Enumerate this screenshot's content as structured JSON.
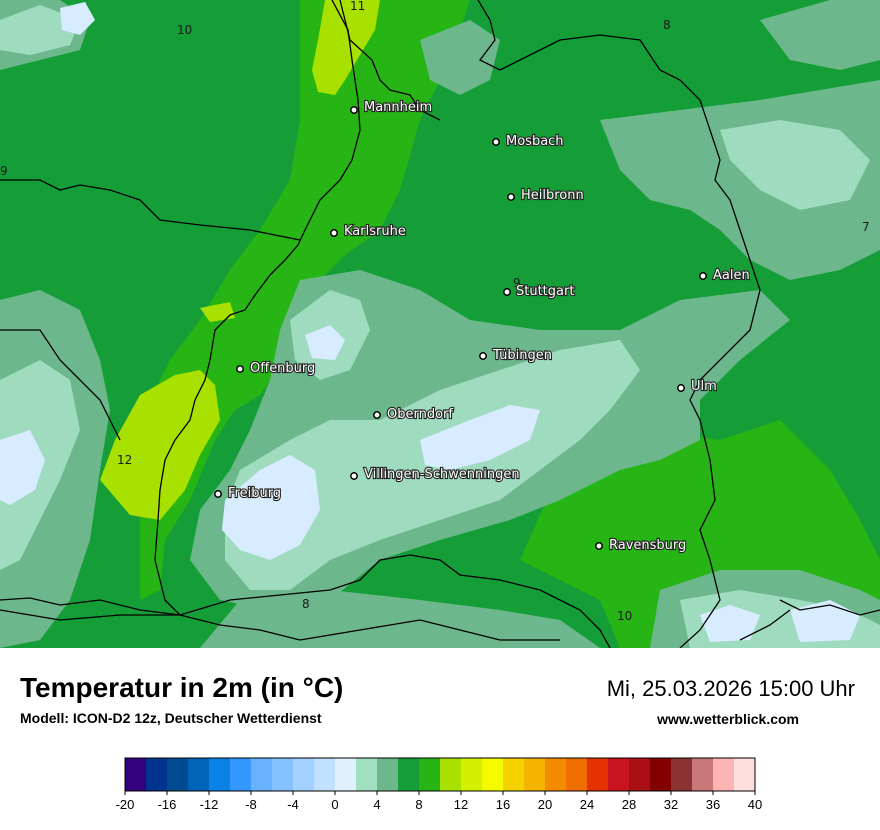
{
  "header": {
    "title": "Temperatur in 2m (in °C)",
    "subtitle": "Modell: ICON-D2 12z, Deutscher Wetterdienst",
    "datetime": "Mi, 25.03.2026 15:00 Uhr",
    "source": "www.wetterblick.com"
  },
  "cities": [
    {
      "name": "Mannheim"
    },
    {
      "name": "Mosbach"
    },
    {
      "name": "Heilbronn"
    },
    {
      "name": "Karlsruhe"
    },
    {
      "name": "Stuttgart"
    },
    {
      "name": "Aalen"
    },
    {
      "name": "Offenburg"
    },
    {
      "name": "Tübingen"
    },
    {
      "name": "Ulm"
    },
    {
      "name": "Oberndorf"
    },
    {
      "name": "Villingen-Schwenningen"
    },
    {
      "name": "Freiburg"
    },
    {
      "name": "Ravensburg"
    }
  ],
  "isoline_labels": [
    "11",
    "10",
    "8",
    "9",
    "7",
    "9",
    "12",
    "8",
    "10"
  ],
  "legend": {
    "tick_labels": [
      "-20",
      "-16",
      "-12",
      "-8",
      "-4",
      "0",
      "4",
      "8",
      "12",
      "16",
      "20",
      "24",
      "28",
      "32",
      "36",
      "40"
    ],
    "min": -20,
    "max": 40,
    "step": 2,
    "colors": [
      "#33007f",
      "#00338f",
      "#004b8f",
      "#0064b8",
      "#0a82e6",
      "#3399ff",
      "#66b2ff",
      "#85c1ff",
      "#a3d1ff",
      "#c2e0ff",
      "#e0f0ff",
      "#a0e0c0",
      "#6cb88c",
      "#159e37",
      "#26b514",
      "#a8e000",
      "#d2f000",
      "#f5fa00",
      "#f5d200",
      "#f5b400",
      "#f58c00",
      "#f06e00",
      "#e63200",
      "#c8141e",
      "#aa0f14",
      "#820000",
      "#8c3232",
      "#c87878",
      "#ffb4b4",
      "#ffdede"
    ]
  },
  "map_colors": {
    "lt_blue": "#d7ecff",
    "mint": "#9fdcbf",
    "sage": "#6cb88c",
    "dk_green": "#159e37",
    "green": "#26b514",
    "lime": "#a8e000"
  }
}
